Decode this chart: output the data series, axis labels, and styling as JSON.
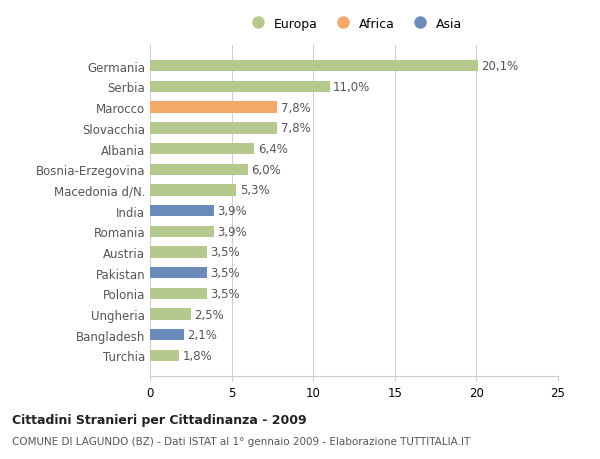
{
  "categories": [
    "Turchia",
    "Bangladesh",
    "Ungheria",
    "Polonia",
    "Pakistan",
    "Austria",
    "Romania",
    "India",
    "Macedonia d/N.",
    "Bosnia-Erzegovina",
    "Albania",
    "Slovacchia",
    "Marocco",
    "Serbia",
    "Germania"
  ],
  "values": [
    1.8,
    2.1,
    2.5,
    3.5,
    3.5,
    3.5,
    3.9,
    3.9,
    5.3,
    6.0,
    6.4,
    7.8,
    7.8,
    11.0,
    20.1
  ],
  "continents": [
    "Europa",
    "Asia",
    "Europa",
    "Europa",
    "Asia",
    "Europa",
    "Europa",
    "Asia",
    "Europa",
    "Europa",
    "Europa",
    "Europa",
    "Africa",
    "Europa",
    "Europa"
  ],
  "labels": [
    "1,8%",
    "2,1%",
    "2,5%",
    "3,5%",
    "3,5%",
    "3,5%",
    "3,9%",
    "3,9%",
    "5,3%",
    "6,0%",
    "6,4%",
    "7,8%",
    "7,8%",
    "11,0%",
    "20,1%"
  ],
  "colors": {
    "Europa": "#b5c98e",
    "Africa": "#f2a96a",
    "Asia": "#6b8cba"
  },
  "title_line1": "Cittadini Stranieri per Cittadinanza - 2009",
  "title_line2": "COMUNE DI LAGUNDO (BZ) - Dati ISTAT al 1° gennaio 2009 - Elaborazione TUTTITALIA.IT",
  "xlim": [
    0,
    25
  ],
  "xticks": [
    0,
    5,
    10,
    15,
    20,
    25
  ],
  "background_color": "#ffffff",
  "bar_height": 0.55,
  "grid_color": "#cccccc",
  "text_color": "#555555",
  "label_fontsize": 8.5,
  "ytick_fontsize": 8.5,
  "xtick_fontsize": 8.5
}
